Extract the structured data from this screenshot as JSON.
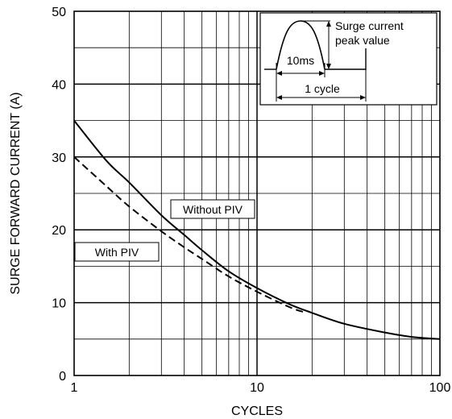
{
  "chart_data": {
    "type": "line",
    "title": "",
    "xlabel": "CYCLES",
    "ylabel": "SURGE FORWARD CURRENT (A)",
    "xscale": "log",
    "xlim": [
      1,
      100
    ],
    "ylim": [
      0,
      50
    ],
    "x_ticks": [
      1,
      10,
      100
    ],
    "x_tick_labels": [
      "1",
      "10",
      "100"
    ],
    "y_ticks": [
      0,
      10,
      20,
      30,
      40,
      50
    ],
    "y_tick_labels": [
      "0",
      "10",
      "20",
      "30",
      "40",
      "50"
    ],
    "grid": true,
    "series": [
      {
        "name": "Without PIV",
        "style": "solid",
        "color": "#000000",
        "x": [
          1,
          1.5,
          2,
          3,
          4,
          5,
          7,
          10,
          15,
          20,
          30,
          50,
          70,
          100
        ],
        "y": [
          35,
          29.5,
          26.5,
          22,
          19.3,
          17.2,
          14.3,
          12,
          9.8,
          8.6,
          7.1,
          5.9,
          5.3,
          5
        ]
      },
      {
        "name": "With PIV",
        "style": "dashed",
        "color": "#000000",
        "x": [
          1,
          1.5,
          2,
          3,
          4,
          5,
          7,
          10,
          15,
          18
        ],
        "y": [
          30,
          26,
          23.2,
          19.8,
          17.6,
          16,
          13.6,
          11.5,
          9.4,
          8.7
        ]
      }
    ],
    "annotations": {
      "inset_peak_label_line1": "Surge current",
      "inset_peak_label_line2": "peak value",
      "inset_halfwave_label": "10ms",
      "inset_cycle_label": "1 cycle"
    }
  }
}
